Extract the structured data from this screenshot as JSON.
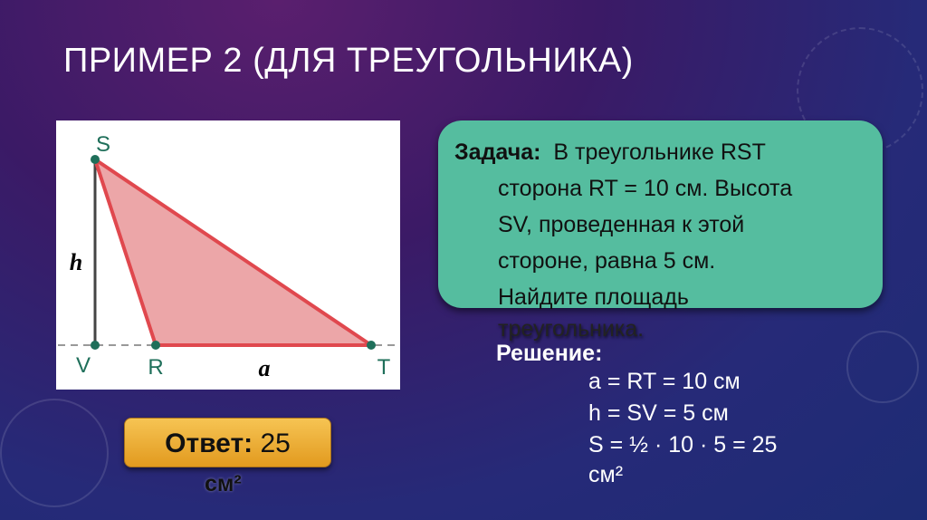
{
  "title": "ПРИМЕР 2 (ДЛЯ ТРЕУГОЛЬНИКА)",
  "figure": {
    "labels": {
      "S": "S",
      "V": "V",
      "R": "R",
      "T": "T",
      "h": "h",
      "a": "a"
    },
    "colors": {
      "fill": "#eca6a8",
      "stroke": "#e0484e",
      "point": "#1f6f5a"
    }
  },
  "task": {
    "label": "Задача:",
    "lines": [
      "В треугольнике RST",
      "сторона RT = 10 см. Высота",
      "SV, проведенная к этой",
      "стороне, равна 5 см.",
      "Найдите площадь",
      "треугольника."
    ]
  },
  "solution": {
    "heading": "Решение:",
    "lines": [
      "a = RT = 10 см",
      "h = SV = 5 см",
      "S = ½ · 10 · 5 = 25",
      "см²"
    ]
  },
  "answer": {
    "label": "Ответ:",
    "value": "25",
    "unit": "см²"
  }
}
